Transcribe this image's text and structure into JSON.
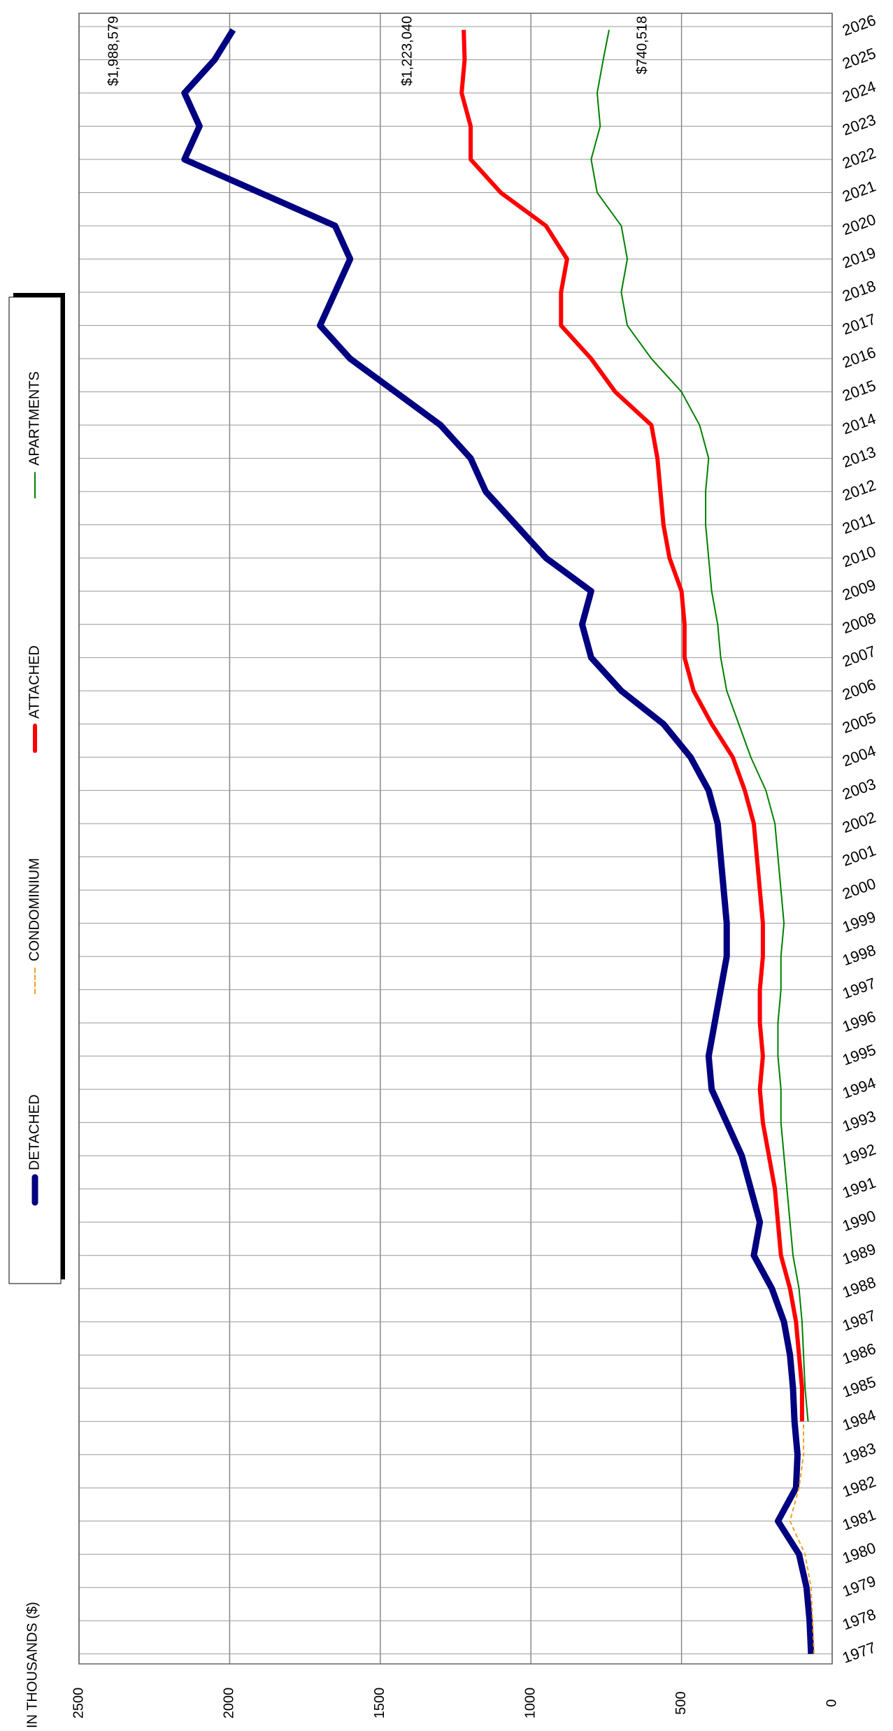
{
  "chart_data": {
    "type": "line",
    "ylabel": "IN THOUSANDS ($)",
    "x": [
      1977,
      1978,
      1979,
      1980,
      1981,
      1982,
      1983,
      1984,
      1985,
      1986,
      1987,
      1988,
      1989,
      1990,
      1991,
      1992,
      1993,
      1994,
      1995,
      1996,
      1997,
      1998,
      1999,
      2000,
      2001,
      2002,
      2003,
      2004,
      2005,
      2006,
      2007,
      2008,
      2009,
      2010,
      2011,
      2012,
      2013,
      2014,
      2015,
      2016,
      2017,
      2018,
      2019,
      2020,
      2021,
      2022,
      2023,
      2024,
      2025,
      2025.9
    ],
    "series": [
      {
        "name": "DETACHED",
        "color": "#000080",
        "width": 9,
        "values": [
          70,
          75,
          85,
          110,
          180,
          120,
          115,
          125,
          130,
          140,
          160,
          200,
          260,
          240,
          270,
          300,
          350,
          400,
          410,
          390,
          370,
          350,
          350,
          360,
          370,
          380,
          410,
          470,
          560,
          700,
          800,
          830,
          800,
          950,
          1050,
          1150,
          1200,
          1300,
          1450,
          1600,
          1700,
          1650,
          1600,
          1650,
          1900,
          2150,
          2100,
          2150,
          2050,
          1988.579
        ],
        "value_labels": [
          null,
          null,
          null,
          null,
          null,
          null,
          null,
          null,
          null,
          null,
          null,
          null,
          null,
          null,
          null,
          null,
          null,
          null,
          null,
          null,
          null,
          null,
          null,
          null,
          null,
          null,
          null,
          null,
          null,
          null,
          null,
          null,
          null,
          null,
          null,
          null,
          null,
          null,
          null,
          null,
          null,
          null,
          null,
          null,
          null,
          null,
          null,
          null,
          null,
          "$1,988,579"
        ]
      },
      {
        "name": "CONDOMINIUM",
        "color": "#f0a020",
        "width": 2,
        "dashed": true,
        "values": [
          60,
          65,
          70,
          90,
          140,
          110,
          95,
          95,
          null,
          null,
          null,
          null,
          null,
          null,
          null,
          null,
          null,
          null,
          null,
          null,
          null,
          null,
          null,
          null,
          null,
          null,
          null,
          null,
          null,
          null,
          null,
          null,
          null,
          null,
          null,
          null,
          null,
          null,
          null,
          null,
          null,
          null,
          null,
          null,
          null,
          null,
          null,
          null,
          null,
          null
        ],
        "value_labels": [
          null,
          null,
          null,
          null,
          null,
          null,
          null,
          null,
          null,
          null,
          null,
          null,
          null,
          null,
          null,
          null,
          null,
          null,
          null,
          null,
          null,
          null,
          null,
          null,
          null,
          null,
          null,
          null,
          null,
          null,
          null,
          null,
          null,
          null,
          null,
          null,
          null,
          null,
          null,
          null,
          null,
          null,
          null,
          null,
          null,
          null,
          null,
          null,
          null,
          null
        ]
      },
      {
        "name": "ATTACHED",
        "color": "#ff0000",
        "width": 6,
        "values": [
          null,
          null,
          null,
          null,
          null,
          null,
          null,
          100,
          100,
          110,
          120,
          140,
          170,
          180,
          190,
          210,
          230,
          240,
          230,
          240,
          240,
          230,
          230,
          240,
          250,
          260,
          290,
          330,
          400,
          460,
          490,
          490,
          500,
          540,
          560,
          570,
          580,
          600,
          720,
          800,
          900,
          900,
          880,
          950,
          1100,
          1200,
          1200,
          1230,
          1220,
          1223.04
        ],
        "value_labels": [
          null,
          null,
          null,
          null,
          null,
          null,
          null,
          null,
          null,
          null,
          null,
          null,
          null,
          null,
          null,
          null,
          null,
          null,
          null,
          null,
          null,
          null,
          null,
          null,
          null,
          null,
          null,
          null,
          null,
          null,
          null,
          null,
          null,
          null,
          null,
          null,
          null,
          null,
          null,
          null,
          null,
          null,
          null,
          null,
          null,
          null,
          null,
          null,
          null,
          "$1,223,040"
        ]
      },
      {
        "name": "APARTMENTS",
        "color": "#008000",
        "width": 2,
        "values": [
          null,
          null,
          null,
          null,
          null,
          null,
          null,
          80,
          90,
          95,
          100,
          110,
          130,
          140,
          150,
          160,
          170,
          170,
          180,
          180,
          170,
          170,
          160,
          170,
          180,
          190,
          220,
          270,
          310,
          350,
          370,
          380,
          400,
          410,
          420,
          420,
          410,
          440,
          500,
          600,
          680,
          700,
          680,
          700,
          780,
          800,
          770,
          780,
          760,
          740.518
        ],
        "value_labels": [
          null,
          null,
          null,
          null,
          null,
          null,
          null,
          null,
          null,
          null,
          null,
          null,
          null,
          null,
          null,
          null,
          null,
          null,
          null,
          null,
          null,
          null,
          null,
          null,
          null,
          null,
          null,
          null,
          null,
          null,
          null,
          null,
          null,
          null,
          null,
          null,
          null,
          null,
          null,
          null,
          null,
          null,
          null,
          null,
          null,
          null,
          null,
          null,
          null,
          "$740,518"
        ]
      }
    ],
    "xlim": [
      1976.7,
      2026.4
    ],
    "xticks": [
      1977,
      1978,
      1979,
      1980,
      1981,
      1982,
      1983,
      1984,
      1985,
      1986,
      1987,
      1988,
      1989,
      1990,
      1991,
      1992,
      1993,
      1994,
      1995,
      1996,
      1997,
      1998,
      1999,
      2000,
      2001,
      2002,
      2003,
      2004,
      2005,
      2006,
      2007,
      2008,
      2009,
      2010,
      2011,
      2012,
      2013,
      2014,
      2015,
      2016,
      2017,
      2018,
      2019,
      2020,
      2021,
      2022,
      2023,
      2024,
      2025,
      2026
    ],
    "ylim": [
      0,
      2500
    ],
    "yticks": [
      0,
      500,
      1000,
      1500,
      2000,
      2500
    ],
    "grid": true,
    "legend": "top"
  }
}
